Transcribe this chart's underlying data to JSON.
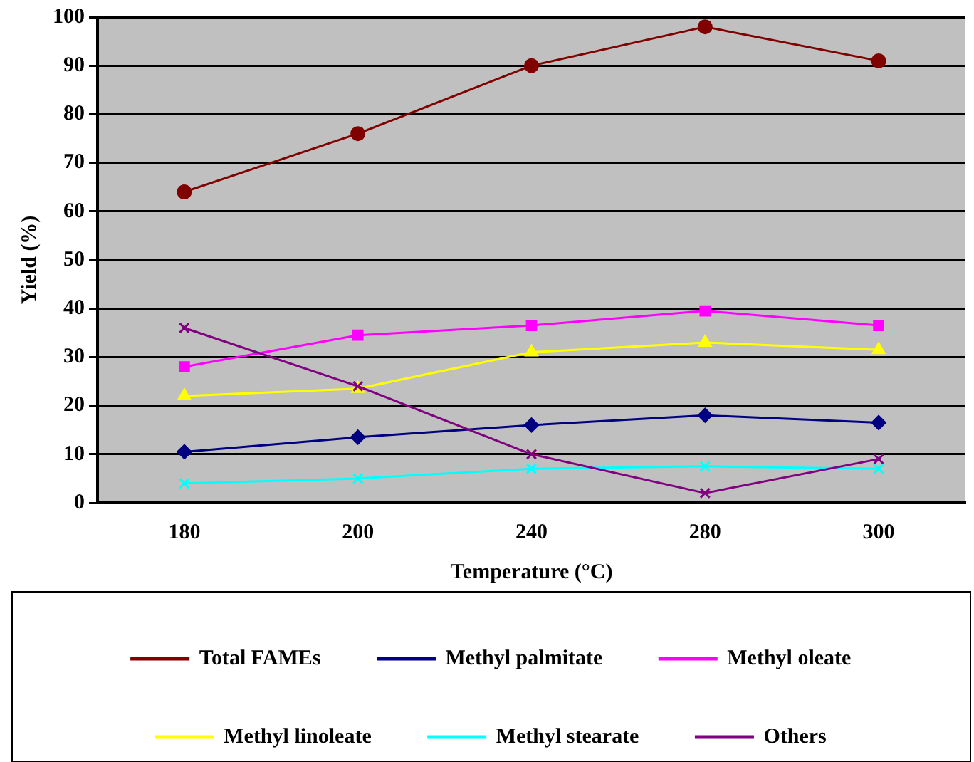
{
  "chart_data": {
    "type": "line",
    "xlabel": "Temperature (°C)",
    "ylabel": "Yield (%)",
    "categories": [
      "180",
      "200",
      "240",
      "280",
      "300"
    ],
    "series": [
      {
        "name": "Total FAMEs",
        "color": "#800000",
        "marker": "circle",
        "values": [
          64,
          76,
          90,
          98,
          91
        ]
      },
      {
        "name": "Methyl palmitate",
        "color": "#000080",
        "marker": "diamond",
        "values": [
          10.5,
          13.5,
          16,
          18,
          16.5
        ]
      },
      {
        "name": "Methyl oleate",
        "color": "#ff00ff",
        "marker": "square",
        "values": [
          28,
          34.5,
          36.5,
          39.5,
          36.5
        ]
      },
      {
        "name": "Methyl linoleate",
        "color": "#ffff00",
        "marker": "triangle",
        "values": [
          22,
          23.5,
          31,
          33,
          31.5
        ]
      },
      {
        "name": "Methyl stearate",
        "color": "#00ffff",
        "marker": "cross",
        "values": [
          4,
          5,
          7,
          7.5,
          7
        ]
      },
      {
        "name": "Others",
        "color": "#800080",
        "marker": "cross",
        "values": [
          36,
          24,
          10,
          2,
          9
        ]
      }
    ],
    "ylim": [
      0,
      100
    ],
    "yticks": [
      0,
      10,
      20,
      30,
      40,
      50,
      60,
      70,
      80,
      90,
      100
    ],
    "grid": "y",
    "legend": "bottom"
  }
}
